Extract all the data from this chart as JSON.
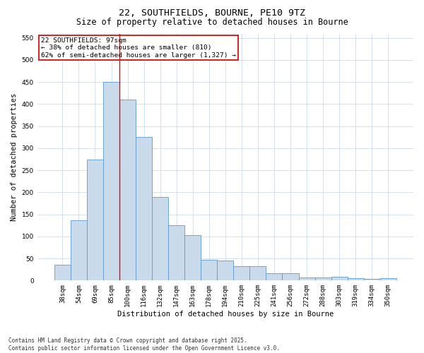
{
  "title_line1": "22, SOUTHFIELDS, BOURNE, PE10 9TZ",
  "title_line2": "Size of property relative to detached houses in Bourne",
  "xlabel": "Distribution of detached houses by size in Bourne",
  "ylabel": "Number of detached properties",
  "categories": [
    "38sqm",
    "54sqm",
    "69sqm",
    "85sqm",
    "100sqm",
    "116sqm",
    "132sqm",
    "147sqm",
    "163sqm",
    "178sqm",
    "194sqm",
    "210sqm",
    "225sqm",
    "241sqm",
    "256sqm",
    "272sqm",
    "288sqm",
    "303sqm",
    "319sqm",
    "334sqm",
    "350sqm"
  ],
  "values": [
    35,
    137,
    275,
    450,
    410,
    325,
    190,
    125,
    103,
    47,
    46,
    32,
    32,
    16,
    16,
    7,
    7,
    9,
    5,
    3,
    5
  ],
  "bar_color": "#c9daea",
  "bar_edge_color": "#5b9bd5",
  "grid_color": "#c8d4e3",
  "vline_color": "#ff0000",
  "vline_x_index": 3.5,
  "annotation_text": "22 SOUTHFIELDS: 97sqm\n← 38% of detached houses are smaller (810)\n62% of semi-detached houses are larger (1,327) →",
  "annotation_box_color": "#ffffff",
  "annotation_box_edge_color": "#cc0000",
  "ylim": [
    0,
    560
  ],
  "yticks": [
    0,
    50,
    100,
    150,
    200,
    250,
    300,
    350,
    400,
    450,
    500,
    550
  ],
  "footer_text": "Contains HM Land Registry data © Crown copyright and database right 2025.\nContains public sector information licensed under the Open Government Licence v3.0.",
  "background_color": "#ffffff",
  "title_fontsize": 9.5,
  "subtitle_fontsize": 8.5,
  "xlabel_fontsize": 7.5,
  "ylabel_fontsize": 7.5,
  "tick_fontsize": 6.5,
  "annotation_fontsize": 6.8,
  "footer_fontsize": 5.5
}
